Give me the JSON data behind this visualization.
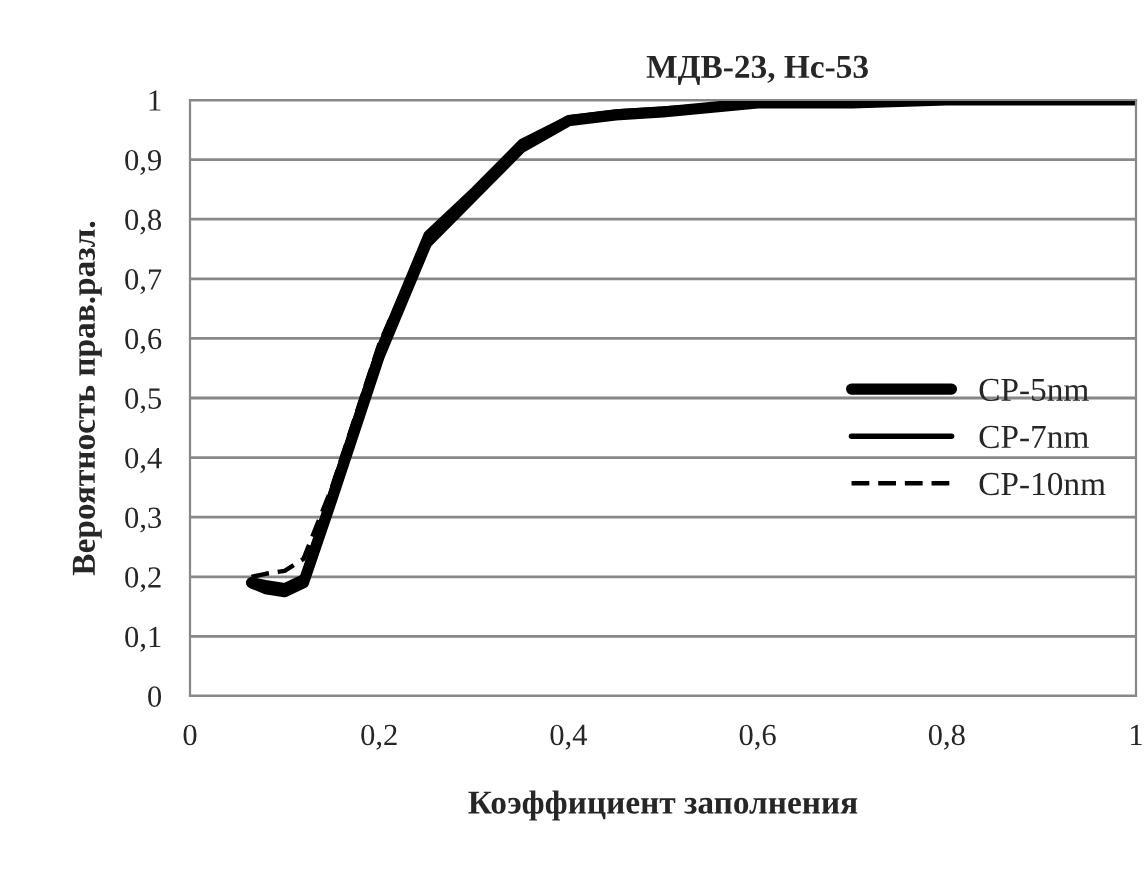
{
  "chart_data": {
    "type": "line",
    "title": "МДВ-23, Hc-53",
    "xlabel": "Коэффициент заполнения",
    "ylabel": "Вероятность прав.разл.",
    "xlim": [
      0,
      1
    ],
    "xticks": [
      {
        "value": 0,
        "label": "0"
      },
      {
        "value": 0.2,
        "label": "0,2"
      },
      {
        "value": 0.4,
        "label": "0,4"
      },
      {
        "value": 0.6,
        "label": "0,6"
      },
      {
        "value": 0.8,
        "label": "0,8"
      },
      {
        "value": 1,
        "label": "1"
      }
    ],
    "ylim": [
      0,
      1
    ],
    "yticks": [
      {
        "value": 0,
        "label": "0"
      },
      {
        "value": 0.1,
        "label": "0,1"
      },
      {
        "value": 0.2,
        "label": "0,2"
      },
      {
        "value": 0.3,
        "label": "0,3"
      },
      {
        "value": 0.4,
        "label": "0,4"
      },
      {
        "value": 0.5,
        "label": "0,5"
      },
      {
        "value": 0.6,
        "label": "0,6"
      },
      {
        "value": 0.7,
        "label": "0,7"
      },
      {
        "value": 0.8,
        "label": "0,8"
      },
      {
        "value": 0.9,
        "label": "0,9"
      },
      {
        "value": 1,
        "label": "1"
      }
    ],
    "grid": "y",
    "legend": "right",
    "marker": "none",
    "series": [
      {
        "name": "CP-5nm",
        "color": "#000000",
        "line_style": "solid",
        "x": [
          0.065,
          0.08,
          0.1,
          0.12,
          0.15,
          0.2,
          0.25,
          0.3,
          0.35,
          0.4,
          0.45,
          0.5,
          0.6,
          0.7,
          0.8,
          1.0
        ],
        "values": [
          0.19,
          0.18,
          0.175,
          0.19,
          0.33,
          0.57,
          0.76,
          0.84,
          0.92,
          0.965,
          0.975,
          0.98,
          0.995,
          0.995,
          1.0,
          1.0
        ]
      },
      {
        "name": "CP-7nm",
        "color": "#000000",
        "line_style": "solid",
        "x": [
          0.065,
          0.08,
          0.1,
          0.12,
          0.15,
          0.2,
          0.25,
          0.3,
          0.35,
          0.4,
          0.45,
          0.5,
          0.6,
          0.7,
          0.8,
          1.0
        ],
        "values": [
          0.195,
          0.19,
          0.185,
          0.2,
          0.345,
          0.585,
          0.775,
          0.85,
          0.93,
          0.97,
          0.98,
          0.985,
          0.995,
          0.995,
          1.0,
          1.0
        ]
      },
      {
        "name": "CP-10nm",
        "color": "#000000",
        "line_style": "dashed",
        "x": [
          0.065,
          0.08,
          0.1,
          0.12,
          0.15,
          0.2,
          0.25,
          0.3
        ],
        "values": [
          0.2,
          0.205,
          0.21,
          0.23,
          0.35,
          0.59,
          0.77,
          0.84
        ]
      }
    ]
  }
}
